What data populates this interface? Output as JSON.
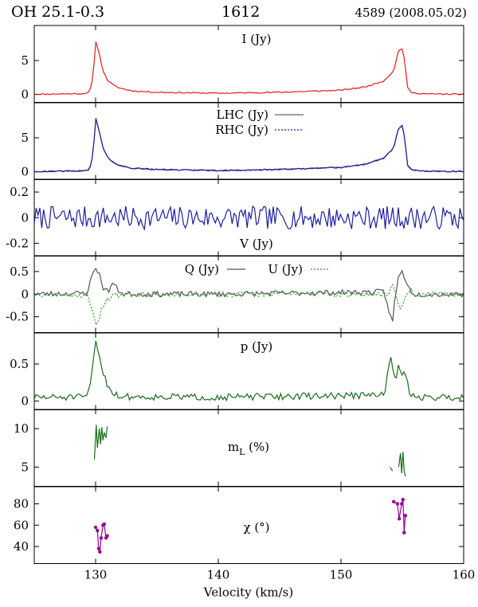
{
  "header": {
    "title": "OH 25.1-0.3",
    "source_id": "1612",
    "observation": "4589 (2008.05.02)"
  },
  "chart_data": {
    "type": "line",
    "xlabel": "Velocity (km/s)",
    "xlim": [
      125,
      160
    ],
    "xticks": [
      130,
      140,
      150,
      160
    ],
    "panels": [
      {
        "id": "I",
        "label": "I (Jy)",
        "ylim": [
          -1.2,
          10.2
        ],
        "yticks": [
          0,
          5
        ],
        "series": [
          {
            "name": "I (Jy)",
            "color": "#e41a1c",
            "style": "solid",
            "x": [
              125,
              127,
              129,
              129.5,
              129.8,
              130.0,
              130.3,
              130.6,
              131.0,
              131.5,
              132,
              133,
              135,
              140,
              145,
              150,
              152,
              153.5,
              154.3,
              154.7,
              155.0,
              155.2,
              155.4,
              155.8,
              157,
              160
            ],
            "y": [
              0.0,
              0.05,
              0.1,
              0.3,
              2.5,
              8.0,
              6.0,
              3.5,
              2.0,
              1.3,
              0.9,
              0.5,
              0.3,
              0.15,
              0.3,
              0.6,
              1.1,
              2.0,
              3.5,
              6.5,
              6.8,
              5.0,
              1.0,
              0.2,
              0.05,
              0.0
            ]
          }
        ]
      },
      {
        "id": "circ",
        "label": "",
        "ylim": [
          -1.2,
          10.2
        ],
        "yticks": [
          0,
          5
        ],
        "legend": [
          {
            "label": "LHC (Jy)",
            "color": "#666666",
            "style": "solid"
          },
          {
            "label": "RHC (Jy)",
            "color": "#1f1fa0",
            "style": "dotted"
          }
        ],
        "series": [
          {
            "name": "LHC (Jy)",
            "color": "#555555",
            "style": "solid",
            "x": [
              125,
              127,
              129,
              129.5,
              129.8,
              130.0,
              130.3,
              130.6,
              131.0,
              131.5,
              132,
              133,
              135,
              140,
              145,
              150,
              152,
              153.5,
              154.3,
              154.7,
              155.0,
              155.2,
              155.4,
              155.8,
              157,
              160
            ],
            "y": [
              0.0,
              0.05,
              0.1,
              0.3,
              2.5,
              8.0,
              6.0,
              3.5,
              2.0,
              1.3,
              0.9,
              0.5,
              0.3,
              0.15,
              0.3,
              0.6,
              1.1,
              2.0,
              3.5,
              6.5,
              6.8,
              5.0,
              1.0,
              0.2,
              0.05,
              0.0
            ]
          },
          {
            "name": "RHC (Jy)",
            "color": "#1f1fa0",
            "style": "solid",
            "x": [
              125,
              127,
              129,
              129.5,
              129.8,
              130.0,
              130.3,
              130.6,
              131.0,
              131.5,
              132,
              133,
              135,
              140,
              145,
              150,
              152,
              153.5,
              154.3,
              154.7,
              155.0,
              155.2,
              155.4,
              155.8,
              157,
              160
            ],
            "y": [
              0.0,
              0.05,
              0.1,
              0.3,
              2.5,
              8.0,
              6.0,
              3.5,
              2.0,
              1.3,
              0.9,
              0.5,
              0.3,
              0.15,
              0.3,
              0.6,
              1.1,
              2.0,
              3.5,
              6.5,
              6.8,
              5.0,
              1.0,
              0.2,
              0.05,
              0.0
            ]
          }
        ]
      },
      {
        "id": "V",
        "label": "V (Jy)",
        "ylim": [
          -0.3,
          0.3
        ],
        "yticks": [
          0.2,
          0,
          -0.2
        ],
        "noise": {
          "amp": 0.09,
          "seed": 7
        },
        "series": [
          {
            "name": "V (Jy)",
            "color": "#1f1fa0",
            "style": "solid",
            "x": [
              125,
              160
            ],
            "y": [
              0,
              0
            ]
          }
        ]
      },
      {
        "id": "QU",
        "label": "",
        "ylim": [
          -0.85,
          0.85
        ],
        "yticks": [
          0.5,
          0,
          -0.5
        ],
        "legend": [
          {
            "label": "Q (Jy)",
            "color": "#555555",
            "style": "solid"
          },
          {
            "label": "U (Jy)",
            "color": "#2e9a2e",
            "style": "dotted"
          }
        ],
        "noise": {
          "amp": 0.06,
          "seed": 23
        },
        "series": [
          {
            "name": "Q (Jy)",
            "color": "#555555",
            "style": "solid",
            "x": [
              125,
              129.3,
              129.7,
              130.0,
              130.3,
              130.6,
              131.0,
              131.4,
              131.8,
              132.3,
              140,
              153.5,
              153.9,
              154.2,
              154.4,
              154.7,
              155.0,
              155.3,
              155.6,
              156.0,
              160
            ],
            "y": [
              0,
              0.02,
              0.4,
              0.6,
              0.45,
              0.15,
              0.05,
              0.25,
              0.1,
              0.0,
              0.0,
              0.05,
              -0.35,
              -0.65,
              -0.1,
              0.4,
              0.5,
              0.3,
              0.1,
              0.0,
              0
            ]
          },
          {
            "name": "U (Jy)",
            "color": "#2e9a2e",
            "style": "dotted",
            "x": [
              125,
              129.3,
              129.7,
              130.0,
              130.3,
              130.6,
              131.0,
              131.5,
              132.0,
              140,
              153.8,
              154.2,
              154.6,
              154.9,
              155.2,
              155.6,
              156.0,
              160
            ],
            "y": [
              0,
              -0.02,
              -0.3,
              -0.7,
              -0.5,
              -0.25,
              -0.1,
              -0.05,
              0.0,
              0.0,
              0.0,
              0.25,
              -0.1,
              -0.35,
              -0.05,
              0.1,
              0.0,
              0
            ]
          }
        ]
      },
      {
        "id": "p",
        "label": "p (Jy)",
        "ylim": [
          -0.12,
          0.92
        ],
        "yticks": [
          0.5,
          0
        ],
        "noise": {
          "amp": 0.045,
          "seed": 51,
          "abs": true
        },
        "series": [
          {
            "name": "p (Jy)",
            "color": "#1b6b1b",
            "style": "solid",
            "x": [
              125,
              129.3,
              129.7,
              130.0,
              130.3,
              130.6,
              131.0,
              131.5,
              132.0,
              140,
              153.5,
              153.9,
              154.1,
              154.4,
              154.7,
              154.9,
              155.2,
              155.5,
              156.0,
              160
            ],
            "y": [
              0.05,
              0.05,
              0.35,
              0.85,
              0.6,
              0.4,
              0.2,
              0.1,
              0.06,
              0.05,
              0.08,
              0.45,
              0.6,
              0.25,
              0.5,
              0.3,
              0.45,
              0.15,
              0.05,
              0.05
            ]
          }
        ]
      },
      {
        "id": "mL",
        "label": "m_L (%)",
        "label_base": "m",
        "label_sub": "L",
        "label_tail": " (%)",
        "ylim": [
          2.5,
          12.5
        ],
        "yticks": [
          10,
          5
        ],
        "series": [
          {
            "name": "mL",
            "color": "#1b6b1b",
            "style": "solid",
            "x": [
              129.9,
              130.05,
              130.15,
              130.3,
              130.4,
              130.5,
              130.6,
              130.7,
              130.85,
              130.95
            ],
            "y": [
              6.0,
              10.5,
              7.5,
              10.0,
              8.0,
              10.2,
              8.5,
              9.5,
              8.8,
              10.3
            ]
          },
          {
            "name": "mL2",
            "color": "#1b6b1b",
            "style": "solid",
            "x": [
              154.0,
              154.2
            ],
            "y": [
              5.0,
              4.5
            ]
          },
          {
            "name": "mL3",
            "color": "#1b6b1b",
            "style": "solid",
            "x": [
              154.7,
              154.85,
              154.95,
              155.05,
              155.15,
              155.25
            ],
            "y": [
              5.0,
              6.8,
              4.2,
              7.0,
              4.5,
              3.8
            ]
          }
        ]
      },
      {
        "id": "chi",
        "label": "χ (°)",
        "ylim": [
          24,
          96
        ],
        "yticks": [
          80,
          60,
          40
        ],
        "series": [
          {
            "name": "chi1",
            "color": "#990099",
            "style": "solid",
            "markers": true,
            "x": [
              130.0,
              130.15,
              130.25,
              130.35,
              130.45,
              130.6,
              130.7,
              130.85,
              130.95
            ],
            "y": [
              58,
              55,
              38,
              35,
              48,
              60,
              61,
              48,
              50
            ]
          },
          {
            "name": "chi2",
            "color": "#990099",
            "style": "solid",
            "markers": true,
            "x": [
              154.3,
              154.6,
              154.75,
              154.95,
              155.05,
              155.15,
              155.25
            ],
            "y": [
              82,
              80,
              66,
              80,
              84,
              53,
              69
            ]
          }
        ]
      }
    ]
  }
}
